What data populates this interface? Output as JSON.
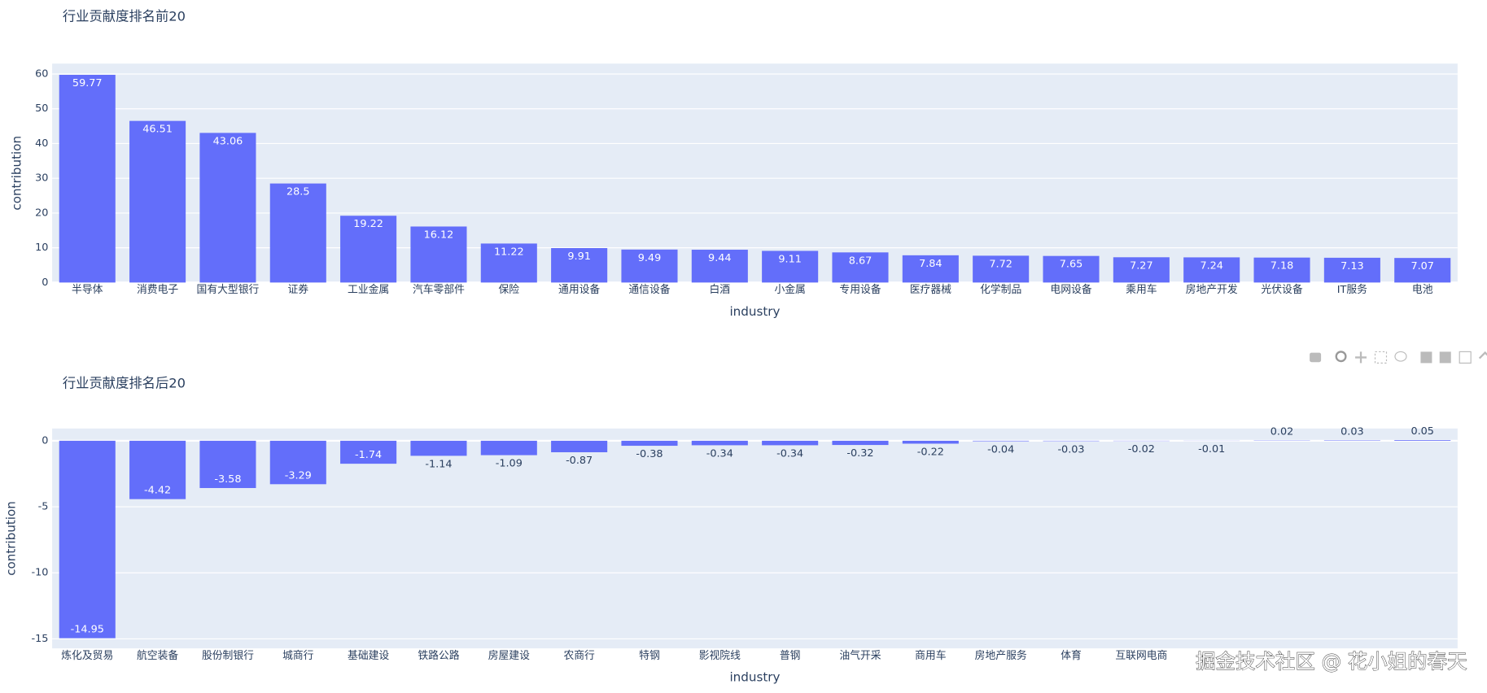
{
  "chart_data": [
    {
      "type": "bar",
      "title": "行业贡献度排名前20",
      "x_label": "industry",
      "y_label": "contribution",
      "categories": [
        "半导体",
        "消费电子",
        "国有大型银行",
        "证券",
        "工业金属",
        "汽车零部件",
        "保险",
        "通用设备",
        "通信设备",
        "白酒",
        "小金属",
        "专用设备",
        "医疗器械",
        "化学制品",
        "电网设备",
        "乘用车",
        "房地产开发",
        "光伏设备",
        "IT服务",
        "电池"
      ],
      "values": [
        59.77,
        46.51,
        43.06,
        28.5,
        19.22,
        16.12,
        11.22,
        9.91,
        9.49,
        9.44,
        9.11,
        8.67,
        7.84,
        7.72,
        7.65,
        7.27,
        7.24,
        7.18,
        7.13,
        7.07
      ],
      "color": "#636efa",
      "ylim": [
        0,
        63
      ],
      "yticks": [
        0,
        10,
        20,
        30,
        40,
        50,
        60
      ],
      "grid": true
    },
    {
      "type": "bar",
      "title": "行业贡献度排名后20",
      "x_label": "industry",
      "y_label": "contribution",
      "categories": [
        "炼化及贸易",
        "航空装备",
        "股份制银行",
        "城商行",
        "基础建设",
        "铁路公路",
        "房屋建设",
        "农商行",
        "特钢",
        "影视院线",
        "普钢",
        "油气开采",
        "商用车",
        "房地产服务",
        "体育",
        "互联网电商",
        null,
        null,
        null,
        null
      ],
      "values": [
        -14.95,
        -4.42,
        -3.58,
        -3.29,
        -1.74,
        -1.14,
        -1.09,
        -0.87,
        -0.38,
        -0.34,
        -0.34,
        -0.32,
        -0.22,
        -0.04,
        -0.03,
        -0.02,
        -0.01,
        0.02,
        0.03,
        0.05
      ],
      "color": "#636efa",
      "ylim": [
        -15.72,
        0.93
      ],
      "yticks": [
        -15,
        -10,
        -5,
        0
      ],
      "grid": true
    }
  ],
  "watermark": "掘金技术社区 @ 花小姐的春天"
}
